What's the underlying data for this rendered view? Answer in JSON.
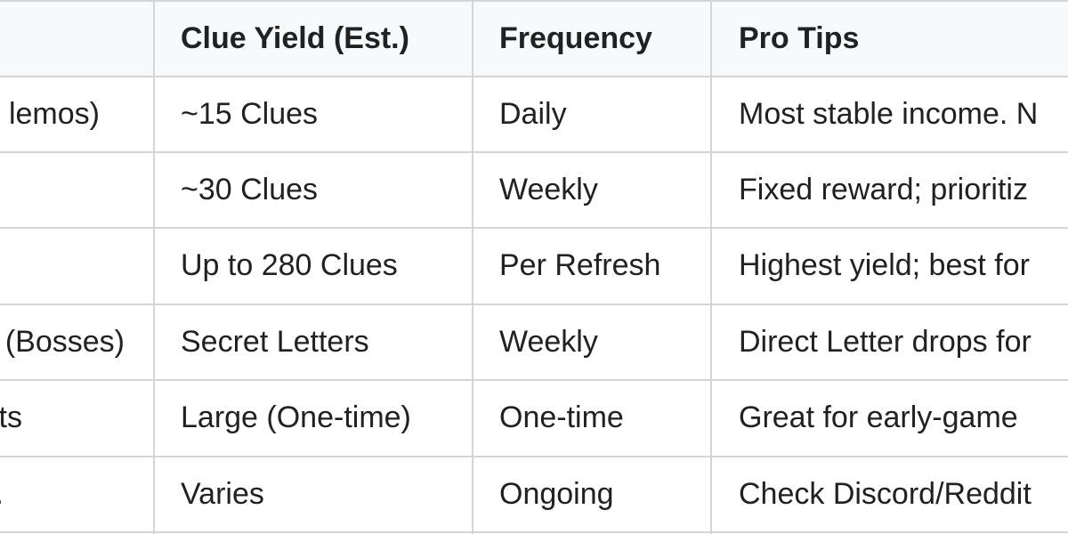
{
  "table": {
    "headers": [
      "",
      "Clue Yield (Est.)",
      "Frequency",
      "Pro Tips"
    ],
    "rows": [
      {
        "source_fragment": "lemos)",
        "yield": "~15 Clues",
        "frequency": "Daily",
        "tips": "Most stable income. N"
      },
      {
        "source_fragment": "",
        "yield": "~30 Clues",
        "frequency": "Weekly",
        "tips": "Fixed reward; prioritiz"
      },
      {
        "source_fragment": "",
        "yield": "Up to 280 Clues",
        "frequency": "Per Refresh",
        "tips": "Highest yield; best for"
      },
      {
        "source_fragment": "(Bosses)",
        "yield": "Secret Letters",
        "frequency": "Weekly",
        "tips": "Direct Letter drops for"
      },
      {
        "source_fragment": "ts",
        "yield": "Large (One-time)",
        "frequency": "One-time",
        "tips": "Great for early-game"
      },
      {
        "source_fragment": ".",
        "yield": "Varies",
        "frequency": "Ongoing",
        "tips": "Check Discord/Reddit"
      }
    ]
  },
  "colors": {
    "header_bg": "#f8f9fa",
    "border": "#d4d5d7",
    "text": "#202122"
  }
}
